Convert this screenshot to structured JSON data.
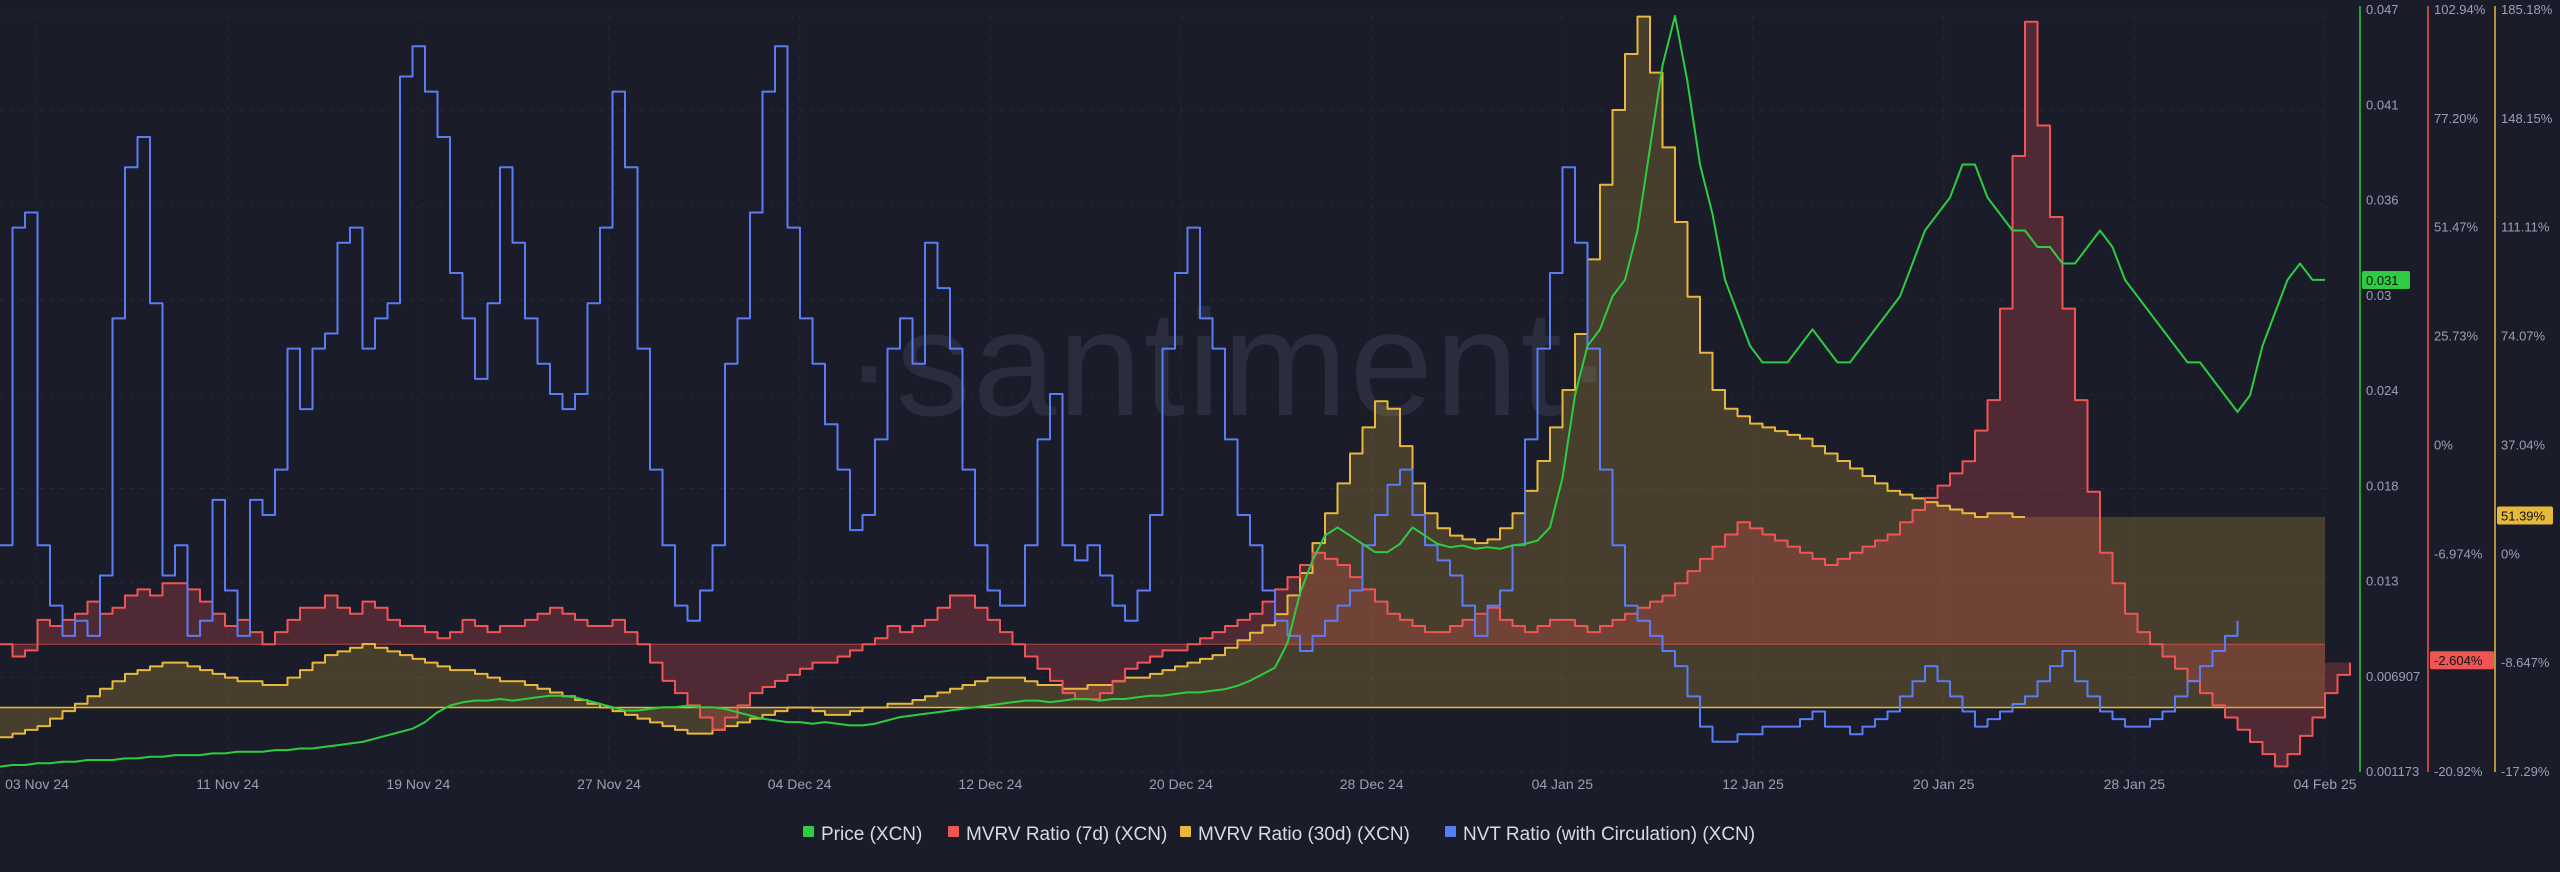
{
  "watermark": "·santiment·",
  "chart_data": {
    "type": "line",
    "x_ticks": [
      "03 Nov 24",
      "11 Nov 24",
      "19 Nov 24",
      "27 Nov 24",
      "04 Dec 24",
      "12 Dec 24",
      "20 Dec 24",
      "28 Dec 24",
      "04 Jan 25",
      "12 Jan 25",
      "20 Jan 25",
      "28 Jan 25",
      "04 Feb 25"
    ],
    "price_axis": {
      "ticks": [
        "0.047",
        "0.041",
        "0.036",
        "0.03",
        "0.024",
        "0.018",
        "0.013",
        "0.006907",
        "0.001173"
      ],
      "current": "0.031",
      "color": "#2ecc40"
    },
    "mvrv7_axis": {
      "ticks": [
        "102.94%",
        "77.20%",
        "51.47%",
        "25.73%",
        "0%",
        "-6.974%",
        "-13.95%",
        "-20.92%"
      ],
      "current": "-2.604%",
      "color": "#f05454"
    },
    "mvrv30_axis": {
      "ticks": [
        "185.18%",
        "148.15%",
        "111.11%",
        "74.07%",
        "37.04%",
        "0%",
        "-8.647%",
        "-17.29%"
      ],
      "current": "51.39%",
      "color": "#e6b93c"
    },
    "series": [
      {
        "name": "Price (XCN)",
        "color": "#2ecc40",
        "values": [
          0.0015,
          0.0016,
          0.0016,
          0.0017,
          0.0017,
          0.0018,
          0.0018,
          0.0019,
          0.0019,
          0.0019,
          0.002,
          0.002,
          0.0021,
          0.0021,
          0.0022,
          0.0022,
          0.0022,
          0.0023,
          0.0023,
          0.0024,
          0.0024,
          0.0024,
          0.0025,
          0.0025,
          0.0026,
          0.0026,
          0.0027,
          0.0028,
          0.0029,
          0.003,
          0.0032,
          0.0034,
          0.0036,
          0.0038,
          0.0042,
          0.0048,
          0.0052,
          0.0054,
          0.0055,
          0.0055,
          0.0056,
          0.0055,
          0.0056,
          0.0057,
          0.0058,
          0.0058,
          0.0057,
          0.0055,
          0.0053,
          0.0051,
          0.0049,
          0.0049,
          0.005,
          0.0051,
          0.0051,
          0.0052,
          0.0051,
          0.0051,
          0.005,
          0.0048,
          0.0046,
          0.0044,
          0.0043,
          0.0042,
          0.0042,
          0.0041,
          0.0042,
          0.0041,
          0.004,
          0.004,
          0.0041,
          0.0043,
          0.0045,
          0.0046,
          0.0047,
          0.0048,
          0.0049,
          0.005,
          0.0051,
          0.0052,
          0.0053,
          0.0054,
          0.0055,
          0.0055,
          0.0054,
          0.0055,
          0.0056,
          0.0056,
          0.0055,
          0.0056,
          0.0056,
          0.0057,
          0.0058,
          0.0058,
          0.0059,
          0.006,
          0.006,
          0.0061,
          0.0062,
          0.0064,
          0.0067,
          0.0071,
          0.0075,
          0.009,
          0.012,
          0.014,
          0.0155,
          0.016,
          0.0155,
          0.015,
          0.0145,
          0.0145,
          0.015,
          0.016,
          0.0155,
          0.015,
          0.0148,
          0.0149,
          0.0147,
          0.0148,
          0.0147,
          0.0149,
          0.015,
          0.0152,
          0.016,
          0.019,
          0.024,
          0.027,
          0.028,
          0.03,
          0.031,
          0.034,
          0.039,
          0.044,
          0.047,
          0.043,
          0.038,
          0.035,
          0.031,
          0.029,
          0.027,
          0.026,
          0.026,
          0.026,
          0.027,
          0.028,
          0.027,
          0.026,
          0.026,
          0.027,
          0.028,
          0.029,
          0.03,
          0.032,
          0.034,
          0.035,
          0.036,
          0.038,
          0.038,
          0.036,
          0.035,
          0.034,
          0.034,
          0.033,
          0.033,
          0.032,
          0.032,
          0.033,
          0.034,
          0.033,
          0.031,
          0.03,
          0.029,
          0.028,
          0.027,
          0.026,
          0.026,
          0.025,
          0.024,
          0.023,
          0.024,
          0.027,
          0.029,
          0.031,
          0.032,
          0.031,
          0.031
        ]
      },
      {
        "name": "MVRV Ratio (7d) (XCN)",
        "color": "#f05454",
        "values": [
          0,
          -2,
          -1,
          4,
          3,
          4,
          5,
          7,
          5,
          6,
          8,
          9,
          8,
          10,
          10,
          9,
          7,
          5,
          3,
          4,
          2,
          0,
          2,
          4,
          6,
          6,
          8,
          6,
          5,
          7,
          6,
          4,
          3,
          3,
          2,
          1,
          2,
          4,
          3,
          2,
          3,
          3,
          4,
          5,
          6,
          5,
          4,
          3,
          3,
          4,
          2,
          0,
          -3,
          -6,
          -8,
          -10,
          -12,
          -14,
          -12,
          -10,
          -8,
          -7,
          -6,
          -5,
          -4,
          -3,
          -3,
          -2,
          -1,
          0,
          1,
          3,
          2,
          3,
          4,
          6,
          8,
          8,
          6,
          4,
          2,
          0,
          -2,
          -4,
          -6,
          -8,
          -9,
          -9,
          -8,
          -6,
          -4,
          -3,
          -2,
          -1,
          -1,
          0,
          1,
          2,
          3,
          4,
          5,
          7,
          9,
          11,
          13,
          15,
          14,
          13,
          11,
          9,
          7,
          5,
          4,
          3,
          2,
          2,
          3,
          4,
          5,
          6,
          4,
          3,
          2,
          3,
          4,
          4,
          3,
          2,
          3,
          4,
          5,
          6,
          7,
          8,
          10,
          12,
          14,
          16,
          18,
          20,
          19,
          18,
          17,
          16,
          15,
          14,
          13,
          14,
          15,
          16,
          17,
          18,
          20,
          22,
          24,
          26,
          28,
          30,
          35,
          40,
          55,
          80,
          102,
          85,
          70,
          55,
          40,
          25,
          15,
          10,
          5,
          2,
          0,
          -2,
          -4,
          -6,
          -8,
          -10,
          -12,
          -14,
          -16,
          -18,
          -20,
          -18,
          -15,
          -12,
          -8,
          -5,
          -3
        ]
      },
      {
        "name": "MVRV Ratio (30d) (XCN)",
        "color": "#e6b93c",
        "values": [
          -8,
          -7,
          -6,
          -5,
          -3,
          -1,
          1,
          3,
          5,
          7,
          9,
          10,
          11,
          12,
          12,
          11,
          10,
          9,
          8,
          7,
          7,
          6,
          6,
          8,
          10,
          12,
          14,
          15,
          16,
          17,
          16,
          15,
          14,
          13,
          12,
          11,
          10,
          10,
          9,
          8,
          7,
          7,
          6,
          5,
          4,
          3,
          2,
          1,
          0,
          -1,
          -2,
          -3,
          -4,
          -5,
          -6,
          -7,
          -7,
          -6,
          -5,
          -4,
          -3,
          -2,
          -1,
          0,
          0,
          -1,
          -2,
          -2,
          -1,
          0,
          0,
          1,
          1,
          2,
          3,
          4,
          5,
          6,
          7,
          8,
          8,
          8,
          7,
          6,
          6,
          5,
          5,
          6,
          6,
          7,
          8,
          8,
          9,
          10,
          11,
          12,
          13,
          14,
          16,
          18,
          20,
          22,
          25,
          30,
          36,
          44,
          52,
          60,
          68,
          75,
          82,
          80,
          70,
          60,
          52,
          48,
          46,
          45,
          44,
          45,
          48,
          52,
          58,
          66,
          75,
          85,
          100,
          120,
          140,
          160,
          175,
          185,
          170,
          150,
          130,
          110,
          95,
          85,
          80,
          78,
          76,
          75,
          74,
          73,
          72,
          70,
          68,
          66,
          64,
          62,
          60,
          58,
          57,
          56,
          55,
          54,
          53,
          52,
          51,
          52,
          52,
          51,
          51
        ]
      },
      {
        "name": "NVT Ratio (with Circulation) (XCN)",
        "color": "#5b7cf5",
        "values": [
          30,
          72,
          74,
          30,
          22,
          18,
          20,
          18,
          26,
          60,
          80,
          84,
          62,
          26,
          30,
          18,
          20,
          36,
          24,
          18,
          36,
          34,
          40,
          56,
          48,
          56,
          58,
          70,
          72,
          56,
          60,
          62,
          92,
          96,
          90,
          84,
          66,
          60,
          52,
          62,
          80,
          70,
          60,
          54,
          50,
          48,
          50,
          62,
          72,
          90,
          80,
          56,
          40,
          30,
          22,
          20,
          24,
          30,
          54,
          60,
          74,
          90,
          96,
          72,
          60,
          54,
          46,
          40,
          32,
          34,
          44,
          56,
          60,
          54,
          70,
          64,
          56,
          40,
          30,
          24,
          22,
          22,
          30,
          44,
          50,
          30,
          28,
          30,
          26,
          22,
          20,
          24,
          34,
          56,
          66,
          72,
          60,
          56,
          44,
          34,
          30,
          24,
          20,
          18,
          16,
          18,
          20,
          22,
          24,
          30,
          34,
          38,
          40,
          34,
          30,
          28,
          26,
          22,
          18,
          22,
          24,
          30,
          44,
          56,
          66,
          80,
          70,
          56,
          40,
          30,
          22,
          20,
          18,
          16,
          14,
          10,
          6,
          4,
          4,
          5,
          5,
          6,
          6,
          6,
          7,
          8,
          6,
          6,
          5,
          6,
          7,
          8,
          10,
          12,
          14,
          12,
          10,
          8,
          6,
          7,
          8,
          9,
          10,
          12,
          14,
          16,
          12,
          10,
          8,
          7,
          6,
          6,
          7,
          8,
          10,
          12,
          14,
          16,
          18,
          20
        ]
      }
    ]
  }
}
